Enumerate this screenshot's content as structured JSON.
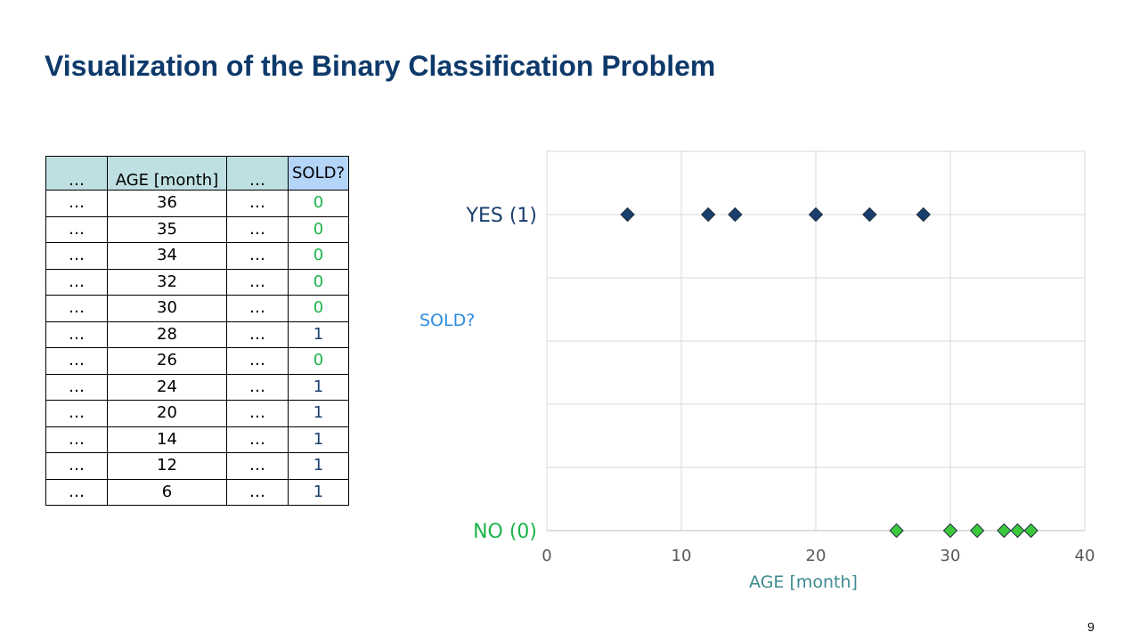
{
  "slide": {
    "title": "Visualization of the Binary Classification Problem",
    "page_number": "9"
  },
  "table": {
    "headers": [
      "…",
      "AGE [month]",
      "…",
      "SOLD?"
    ],
    "rows": [
      [
        "…",
        "36",
        "…",
        "0"
      ],
      [
        "…",
        "35",
        "…",
        "0"
      ],
      [
        "…",
        "34",
        "…",
        "0"
      ],
      [
        "…",
        "32",
        "…",
        "0"
      ],
      [
        "…",
        "30",
        "…",
        "0"
      ],
      [
        "…",
        "28",
        "…",
        "1"
      ],
      [
        "…",
        "26",
        "…",
        "0"
      ],
      [
        "…",
        "24",
        "…",
        "1"
      ],
      [
        "…",
        "20",
        "…",
        "1"
      ],
      [
        "…",
        "14",
        "…",
        "1"
      ],
      [
        "…",
        "12",
        "…",
        "1"
      ],
      [
        "…",
        "6",
        "…",
        "1"
      ]
    ]
  },
  "chart_data": {
    "type": "scatter",
    "xlabel": "AGE [month]",
    "ylabel": "SOLD?",
    "xlim": [
      0,
      40
    ],
    "ylim": [
      0,
      1
    ],
    "x_ticks": [
      "0",
      "10",
      "20",
      "30",
      "40"
    ],
    "y_tick_labels": [
      {
        "value": 1,
        "label": "YES (1)"
      },
      {
        "value": 0,
        "label": "NO (0)"
      }
    ],
    "grid": true,
    "series": [
      {
        "color": "#1a3f6e",
        "points": [
          [
            6,
            1
          ],
          [
            12,
            1
          ],
          [
            14,
            1
          ],
          [
            20,
            1
          ],
          [
            24,
            1
          ],
          [
            28,
            1
          ]
        ]
      },
      {
        "color": "#3cc83c",
        "points": [
          [
            26,
            0
          ],
          [
            30,
            0
          ],
          [
            32,
            0
          ],
          [
            34,
            0
          ],
          [
            35,
            0
          ],
          [
            36,
            0
          ]
        ]
      }
    ],
    "colors": {
      "yes_label": "#1a3f6e",
      "no_label": "#1db34a",
      "ylabel": "#2e8de0",
      "xlabel": "#3d8a90",
      "ticks": "#595959"
    }
  }
}
